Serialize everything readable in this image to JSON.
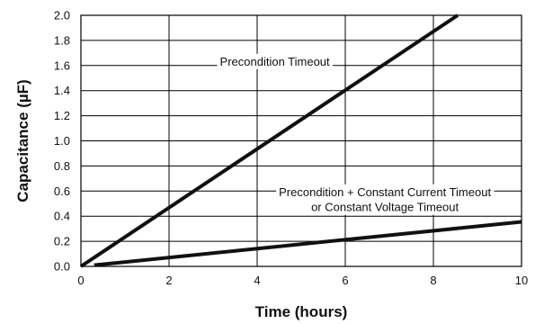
{
  "chart_data": {
    "type": "line",
    "xlabel": "Time (hours)",
    "ylabel": "Capacitance (µF)",
    "xlim": [
      0,
      10
    ],
    "ylim": [
      0,
      2.0
    ],
    "x_ticks": [
      "0",
      "2",
      "4",
      "6",
      "8",
      "10"
    ],
    "y_ticks": [
      "0.0",
      "0.2",
      "0.4",
      "0.6",
      "0.8",
      "1.0",
      "1.2",
      "1.4",
      "1.6",
      "1.8",
      "2.0"
    ],
    "grid": true,
    "series": [
      {
        "x": [
          0,
          8.55
        ],
        "y": [
          0,
          2.0
        ]
      },
      {
        "x": [
          0.3,
          10
        ],
        "y": [
          0.01,
          0.355
        ]
      }
    ],
    "annotations": [
      {
        "text": "Precondition Timeout",
        "x": 4.4,
        "y": 1.6
      },
      {
        "text": "Precondition + Constant Current Timeout",
        "x": 6.9,
        "y": 0.56
      },
      {
        "text": "or Constant Voltage Timeout",
        "x": 6.9,
        "y": 0.44
      }
    ]
  }
}
